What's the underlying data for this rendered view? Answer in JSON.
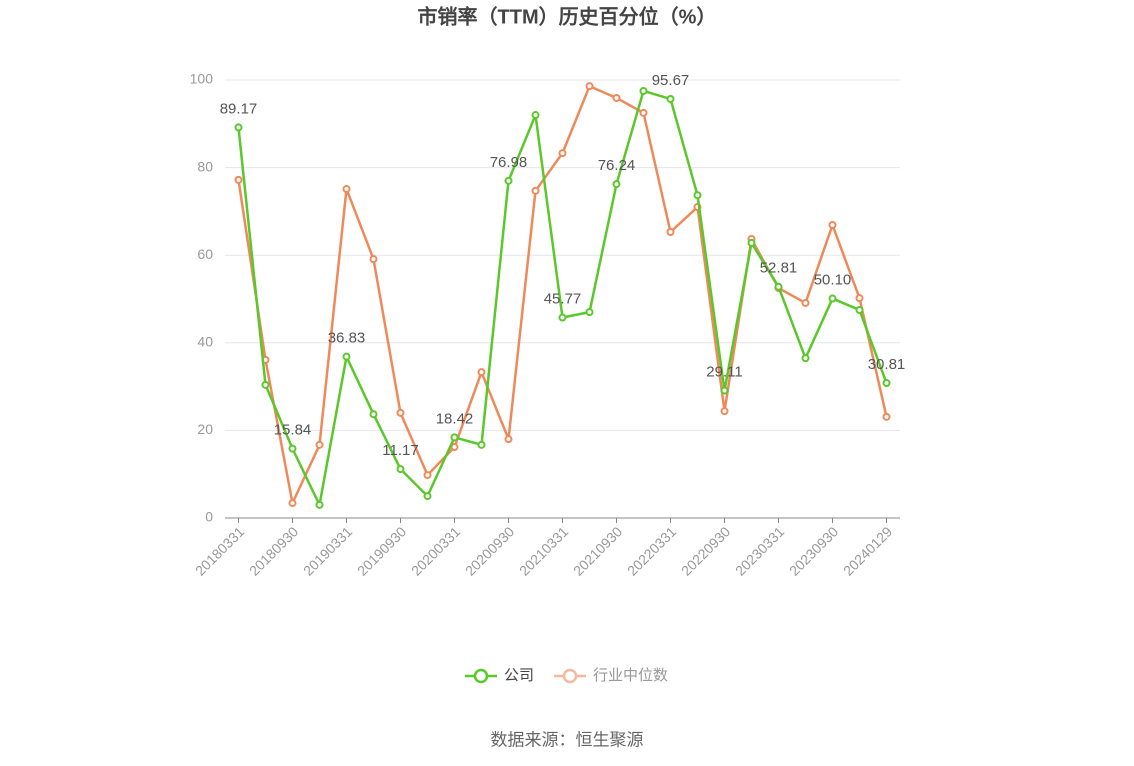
{
  "chart_data": {
    "type": "line",
    "title": "市销率（TTM）历史百分位（%）",
    "source": "数据来源：恒生聚源",
    "categories": [
      "20180331",
      null,
      "20180930",
      null,
      "20190331",
      null,
      "20190930",
      null,
      "20200331",
      null,
      "20200930",
      null,
      "20210331",
      null,
      "20210930",
      null,
      "20220331",
      null,
      "20220930",
      null,
      "20230331",
      null,
      "20230930",
      null,
      "20240129"
    ],
    "series": [
      {
        "name": "公司",
        "color": "#5ac82a",
        "values": [
          89.17,
          30.4,
          15.84,
          3.0,
          36.83,
          23.7,
          11.17,
          5.0,
          18.42,
          16.7,
          76.98,
          92.0,
          45.77,
          47.0,
          76.24,
          97.5,
          95.67,
          73.7,
          29.11,
          62.8,
          52.81,
          36.5,
          50.1,
          47.5,
          30.81
        ],
        "value_labels": [
          "89.17",
          null,
          "15.84",
          null,
          "36.83",
          null,
          "11.17",
          null,
          "18.42",
          null,
          "76.98",
          null,
          "45.77",
          null,
          "76.24",
          null,
          "95.67",
          null,
          "29.11",
          null,
          "52.81",
          null,
          "50.10",
          null,
          "30.81"
        ]
      },
      {
        "name": "行业中位数",
        "color": "#f0895a",
        "values": [
          77.2,
          36.1,
          3.4,
          16.7,
          75.1,
          59.1,
          24.0,
          9.8,
          16.2,
          33.3,
          18.0,
          74.7,
          83.3,
          98.6,
          95.9,
          92.5,
          65.3,
          71.0,
          24.4,
          63.7,
          52.5,
          49.1,
          66.9,
          50.2,
          23.1
        ]
      }
    ],
    "ylim": [
      0,
      100
    ],
    "yticks": [
      0,
      20,
      40,
      60,
      80,
      100
    ],
    "grid": true,
    "legend": "bottom"
  }
}
